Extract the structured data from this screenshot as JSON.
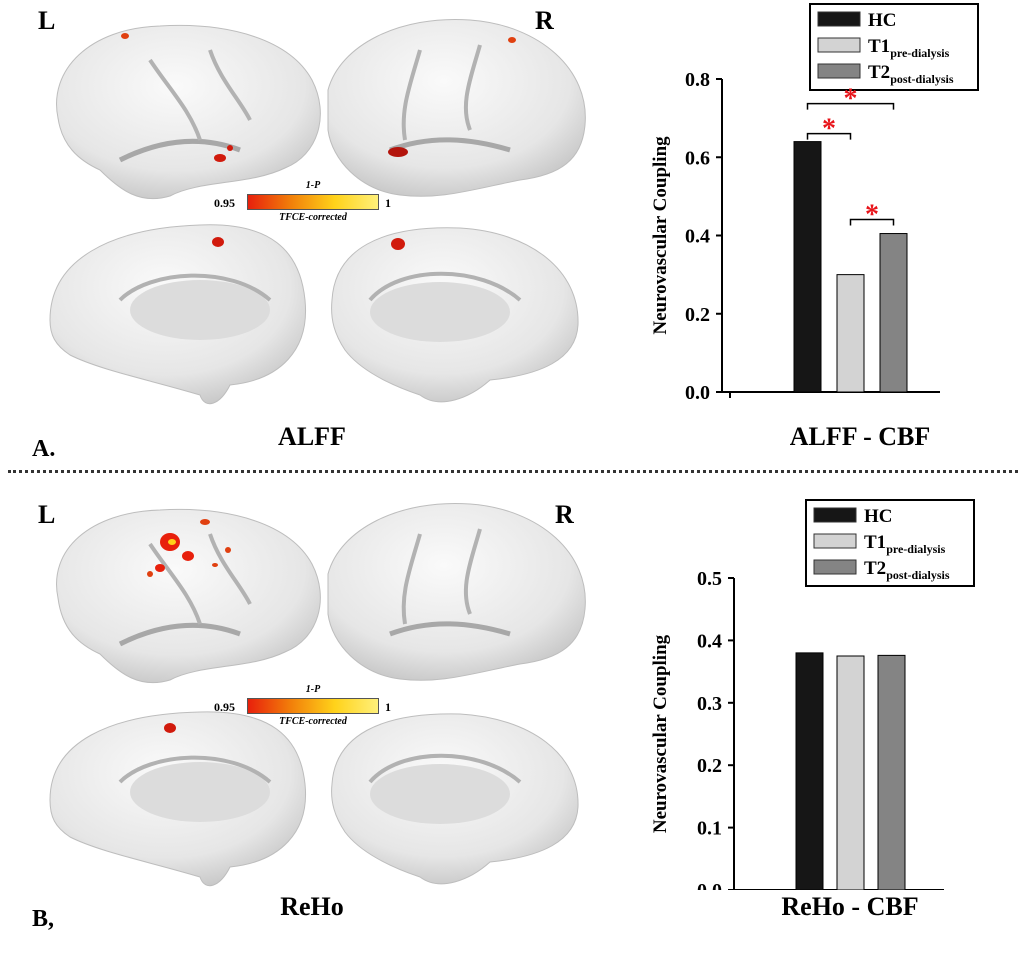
{
  "panels": [
    {
      "id": "A",
      "letter": "A.",
      "brain_title": "ALFF",
      "side_left": "L",
      "side_right": "R",
      "colorbar": {
        "top_label": "1-P",
        "bottom_label": "TFCE-corrected",
        "min": "0.95",
        "max": "1"
      },
      "chart_title": "ALFF - CBF"
    },
    {
      "id": "B",
      "letter": "B,",
      "brain_title": "ReHo",
      "side_left": "L",
      "side_right": "R",
      "colorbar": {
        "top_label": "1-P",
        "bottom_label": "TFCE-corrected",
        "min": "0.95",
        "max": "1"
      },
      "chart_title": "ReHo - CBF"
    }
  ],
  "chart_data": [
    {
      "type": "bar",
      "title": "ALFF - CBF",
      "ylabel": "Neurovascular Coupling",
      "ylim": [
        0,
        0.8
      ],
      "yticks": [
        "0.0",
        "0.2",
        "0.4",
        "0.6",
        "0.8"
      ],
      "categories": [
        "HC",
        "T1 pre-dialysis",
        "T2 post-dialysis"
      ],
      "values": [
        0.64,
        0.3,
        0.405
      ],
      "colors": [
        "#161616",
        "#d3d3d3",
        "#848484"
      ],
      "legend": [
        {
          "main": "HC",
          "sub": ""
        },
        {
          "main": "T1",
          "sub": "pre-dialysis"
        },
        {
          "main": "T2",
          "sub": "post-dialysis"
        }
      ],
      "legend_position": "top-right",
      "significance": [
        {
          "pair": [
            "HC",
            "T1 pre-dialysis"
          ],
          "mark": "*"
        },
        {
          "pair": [
            "HC",
            "T2 post-dialysis"
          ],
          "mark": "*"
        },
        {
          "pair": [
            "T1 pre-dialysis",
            "T2 post-dialysis"
          ],
          "mark": "*"
        }
      ],
      "significance_color": "#e8141a"
    },
    {
      "type": "bar",
      "title": "ReHo - CBF",
      "ylabel": "Neurovascular Coupling",
      "ylim": [
        0,
        0.5
      ],
      "yticks": [
        "0.0",
        "0.1",
        "0.2",
        "0.3",
        "0.4",
        "0.5"
      ],
      "categories": [
        "HC",
        "T1 pre-dialysis",
        "T2 post-dialysis"
      ],
      "values": [
        0.38,
        0.375,
        0.376
      ],
      "colors": [
        "#161616",
        "#d3d3d3",
        "#848484"
      ],
      "legend": [
        {
          "main": "HC",
          "sub": ""
        },
        {
          "main": "T1",
          "sub": "pre-dialysis"
        },
        {
          "main": "T2",
          "sub": "post-dialysis"
        }
      ],
      "legend_position": "top-right",
      "significance": []
    }
  ]
}
